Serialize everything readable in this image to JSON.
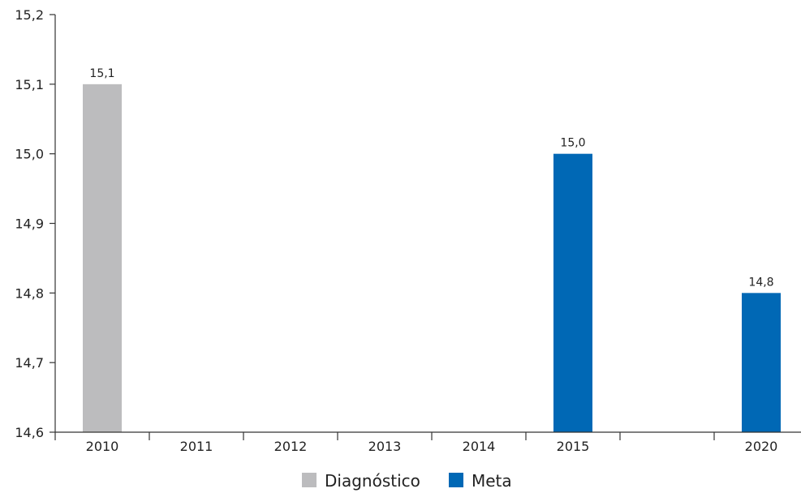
{
  "chart_data": {
    "type": "bar",
    "categories": [
      "2010",
      "2011",
      "2012",
      "2013",
      "2014",
      "2015",
      "",
      "2020"
    ],
    "series": [
      {
        "name": "Diagnóstico",
        "color": "#bcbcbe",
        "values": [
          15.1,
          null,
          null,
          null,
          null,
          null,
          null,
          null
        ],
        "labels": [
          "15,1",
          "",
          "",
          "",
          "",
          "",
          "",
          ""
        ]
      },
      {
        "name": "Meta",
        "color": "#0068b5",
        "values": [
          null,
          null,
          null,
          null,
          null,
          15.0,
          null,
          14.8
        ],
        "labels": [
          "",
          "",
          "",
          "",
          "",
          "15,0",
          "",
          "14,8"
        ]
      }
    ],
    "ylim": [
      14.6,
      15.2
    ],
    "yticks": [
      14.6,
      14.7,
      14.8,
      14.9,
      15.0,
      15.1,
      15.2
    ],
    "ytick_labels": [
      "14,6",
      "14,7",
      "14,8",
      "14,9",
      "15,0",
      "15,1",
      "15,2"
    ],
    "xlabel": "",
    "ylabel": "",
    "title": "",
    "grid": false,
    "legend_position": "bottom-center"
  }
}
